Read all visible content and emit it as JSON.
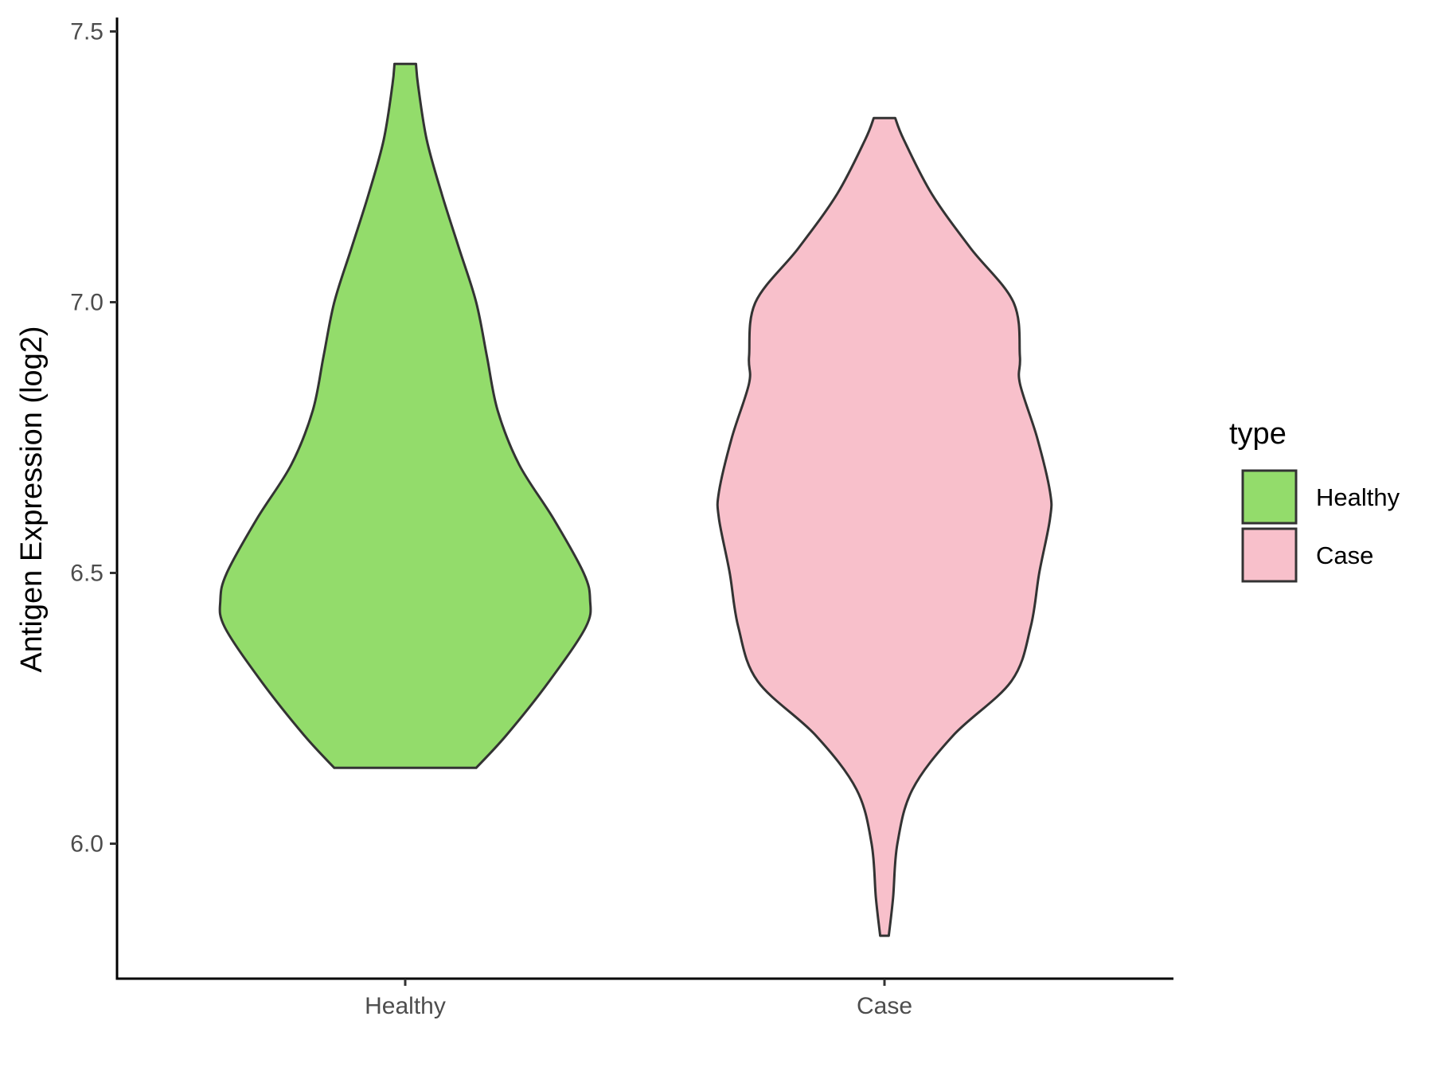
{
  "chart_data": {
    "type": "violin",
    "title": "",
    "xlabel": "",
    "ylabel": "Antigen Expression (log2)",
    "ylim": [
      5.76,
      7.52
    ],
    "yticks": [
      "6.0",
      "6.5",
      "7.0",
      "7.5"
    ],
    "grid": false,
    "legend": {
      "title": "type",
      "position": "right"
    },
    "categories": [
      "Healthy",
      "Case"
    ],
    "series": [
      {
        "name": "Healthy",
        "color": "#93DC6B",
        "min": 6.14,
        "max": 7.44,
        "density_profile": [
          [
            6.14,
            0.33
          ],
          [
            6.2,
            0.47
          ],
          [
            6.3,
            0.67
          ],
          [
            6.4,
            0.84
          ],
          [
            6.45,
            0.86
          ],
          [
            6.5,
            0.83
          ],
          [
            6.6,
            0.69
          ],
          [
            6.7,
            0.53
          ],
          [
            6.8,
            0.43
          ],
          [
            6.9,
            0.38
          ],
          [
            7.0,
            0.33
          ],
          [
            7.1,
            0.25
          ],
          [
            7.2,
            0.17
          ],
          [
            7.3,
            0.1
          ],
          [
            7.4,
            0.06
          ],
          [
            7.44,
            0.05
          ]
        ]
      },
      {
        "name": "Case",
        "color": "#F8C0CB",
        "min": 5.83,
        "max": 7.34,
        "density_profile": [
          [
            5.83,
            0.02
          ],
          [
            5.9,
            0.04
          ],
          [
            6.0,
            0.06
          ],
          [
            6.1,
            0.13
          ],
          [
            6.2,
            0.32
          ],
          [
            6.3,
            0.59
          ],
          [
            6.4,
            0.68
          ],
          [
            6.5,
            0.72
          ],
          [
            6.6,
            0.77
          ],
          [
            6.65,
            0.77
          ],
          [
            6.75,
            0.71
          ],
          [
            6.85,
            0.63
          ],
          [
            6.9,
            0.63
          ],
          [
            7.0,
            0.6
          ],
          [
            7.1,
            0.4
          ],
          [
            7.2,
            0.22
          ],
          [
            7.3,
            0.09
          ],
          [
            7.34,
            0.05
          ]
        ]
      }
    ]
  }
}
